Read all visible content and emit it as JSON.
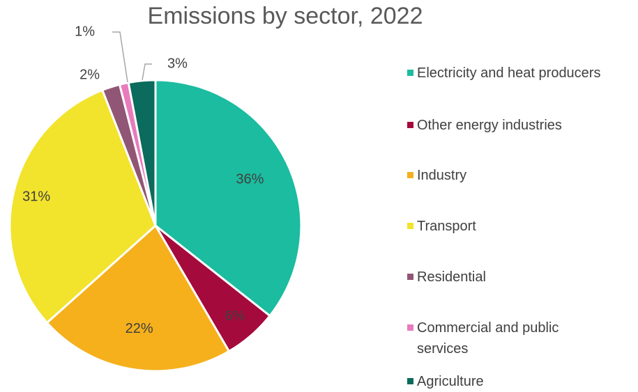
{
  "chart_data": {
    "type": "pie",
    "title": "Emissions by sector, 2022",
    "categories": [
      "Electricity and heat producers",
      "Other energy industries",
      "Industry",
      "Transport",
      "Residential",
      "Commercial and public services",
      "Agriculture"
    ],
    "values": [
      36,
      6,
      22,
      31,
      2,
      1,
      3
    ],
    "data_labels": [
      "36%",
      "6%",
      "22%",
      "31%",
      "2%",
      "1%",
      "3%"
    ],
    "colors": [
      "#1bbc9f",
      "#a50a3c",
      "#f5b01c",
      "#f2e32d",
      "#915675",
      "#e87bbd",
      "#0b6b5c"
    ],
    "legend_position": "right",
    "grid": false
  }
}
